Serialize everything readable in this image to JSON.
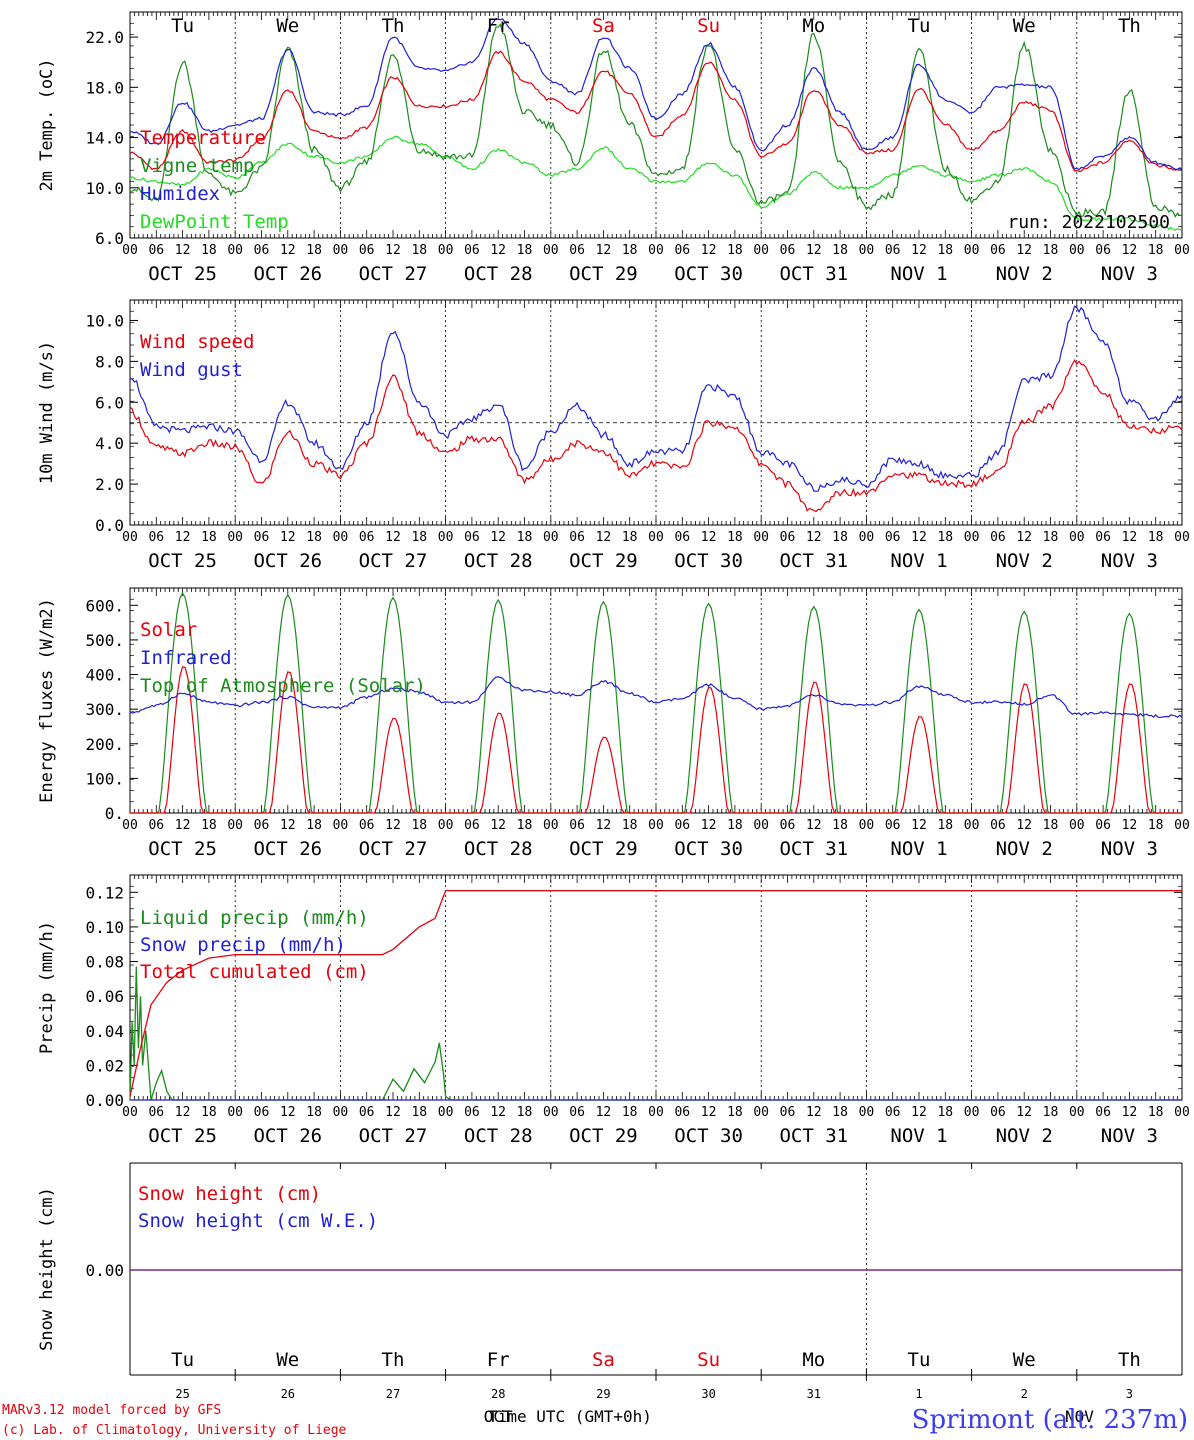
{
  "days_top": [
    {
      "label": "Tu",
      "color": "#000000"
    },
    {
      "label": "We",
      "color": "#000000"
    },
    {
      "label": "Th",
      "color": "#000000"
    },
    {
      "label": "Fr",
      "color": "#000000"
    },
    {
      "label": "Sa",
      "color": "#e8000b"
    },
    {
      "label": "Su",
      "color": "#e8000b"
    },
    {
      "label": "Mo",
      "color": "#000000"
    },
    {
      "label": "Tu",
      "color": "#000000"
    },
    {
      "label": "We",
      "color": "#000000"
    },
    {
      "label": "Th",
      "color": "#000000"
    }
  ],
  "date_labels": [
    "OCT 25",
    "OCT 26",
    "OCT 27",
    "OCT 28",
    "OCT 29",
    "OCT 30",
    "OCT 31",
    "NOV  1",
    "NOV  2",
    "NOV  3"
  ],
  "hour_ticks": [
    "00",
    "06",
    "12",
    "18"
  ],
  "hour_end": "00",
  "colors": {
    "red": "#e8000b",
    "green": "#1a8c1a",
    "blue": "#1f1fd6",
    "lightgreen": "#22dd22",
    "purple": "#7a2a8a"
  },
  "chart_data": [
    {
      "type": "line",
      "ylabel": "2m Temp. (oC)",
      "ylim": [
        6,
        24
      ],
      "yticks": [
        "6.0",
        "10.0",
        "14.0",
        "18.0",
        "22.0"
      ],
      "note": "run: 2022102500",
      "x_days": [
        0,
        0.25,
        0.5,
        0.75,
        1,
        1.25,
        1.5,
        1.75,
        2,
        2.25,
        2.5,
        2.75,
        3,
        3.25,
        3.5,
        3.75,
        4,
        4.25,
        4.5,
        4.75,
        5,
        5.25,
        5.5,
        5.75,
        6,
        6.25,
        6.5,
        6.75,
        7,
        7.25,
        7.5,
        7.75,
        8,
        8.25,
        8.5,
        8.75,
        9,
        9.25,
        9.5,
        9.75,
        10
      ],
      "series": [
        {
          "name": "Temperature",
          "color": "red",
          "values": [
            12.8,
            11.5,
            14.5,
            12.0,
            12.2,
            13.8,
            17.8,
            14.5,
            13.9,
            14.8,
            18.8,
            16.5,
            16.5,
            17.0,
            20.8,
            18.5,
            17.0,
            16.0,
            19.3,
            17.5,
            14.0,
            15.8,
            20.0,
            17.0,
            12.5,
            13.5,
            17.8,
            15.0,
            12.8,
            13.0,
            17.9,
            15.0,
            13.0,
            14.5,
            16.8,
            16.2,
            11.3,
            12.0,
            13.8,
            11.8,
            11.4
          ]
        },
        {
          "name": "Vigne temp",
          "color": "green",
          "values": [
            10.0,
            9.0,
            20.0,
            11.0,
            9.5,
            11.5,
            21.0,
            13.0,
            10.0,
            12.0,
            20.5,
            13.0,
            12.5,
            12.5,
            23.0,
            16.0,
            15.0,
            12.0,
            21.0,
            15.0,
            11.0,
            11.5,
            21.5,
            13.0,
            8.8,
            9.5,
            22.2,
            12.0,
            8.5,
            9.5,
            21.0,
            11.5,
            9.0,
            10.5,
            21.3,
            13.0,
            8.0,
            8.0,
            17.8,
            8.5,
            7.8
          ]
        },
        {
          "name": "Humidex",
          "color": "blue",
          "values": [
            14.5,
            13.5,
            16.8,
            14.5,
            15.0,
            15.5,
            21.0,
            16.0,
            15.8,
            16.5,
            22.0,
            19.5,
            19.3,
            20.0,
            23.5,
            21.5,
            18.5,
            17.5,
            22.0,
            19.5,
            15.5,
            17.5,
            21.5,
            18.0,
            13.0,
            15.0,
            19.5,
            16.0,
            13.0,
            14.0,
            19.8,
            17.0,
            16.0,
            18.0,
            18.2,
            18.0,
            11.5,
            12.5,
            14.0,
            12.0,
            11.5
          ]
        },
        {
          "name": "DewPoint Temp",
          "color": "lightgreen",
          "values": [
            10.8,
            10.5,
            10.2,
            11.5,
            10.8,
            12.0,
            13.5,
            12.5,
            12.0,
            12.5,
            14.0,
            13.5,
            12.5,
            11.5,
            13.0,
            12.0,
            11.0,
            11.5,
            13.2,
            11.5,
            10.5,
            10.5,
            12.0,
            11.0,
            8.5,
            9.5,
            11.2,
            10.0,
            10.0,
            11.0,
            11.8,
            11.0,
            10.5,
            11.0,
            11.5,
            10.5,
            7.5,
            7.5,
            7.5,
            7.0,
            6.6
          ]
        }
      ]
    },
    {
      "type": "line",
      "ylabel": "10m Wind (m/s)",
      "ylim": [
        0,
        11
      ],
      "yticks": [
        "0.0",
        "2.0",
        "4.0",
        "6.0",
        "8.0",
        "10.0"
      ],
      "reference_line": 5,
      "x_days": [
        0,
        0.25,
        0.5,
        0.75,
        1,
        1.25,
        1.5,
        1.75,
        2,
        2.25,
        2.5,
        2.75,
        3,
        3.25,
        3.5,
        3.75,
        4,
        4.25,
        4.5,
        4.75,
        5,
        5.25,
        5.5,
        5.75,
        6,
        6.25,
        6.5,
        6.75,
        7,
        7.25,
        7.5,
        7.75,
        8,
        8.25,
        8.5,
        8.75,
        9,
        9.25,
        9.5,
        9.75,
        10
      ],
      "series": [
        {
          "name": "Wind speed",
          "color": "red",
          "values": [
            5.6,
            3.8,
            3.5,
            4.0,
            3.8,
            2.0,
            4.5,
            3.0,
            2.4,
            4.0,
            7.2,
            4.5,
            3.5,
            4.2,
            4.2,
            2.2,
            3.2,
            4.0,
            3.6,
            2.4,
            3.0,
            2.8,
            5.0,
            4.8,
            3.0,
            2.0,
            0.6,
            1.6,
            1.6,
            2.5,
            2.4,
            2.0,
            2.0,
            2.6,
            5.0,
            5.8,
            8.0,
            6.5,
            4.8,
            4.6,
            4.8
          ]
        },
        {
          "name": "Wind gust",
          "color": "blue",
          "values": [
            7.3,
            4.8,
            4.6,
            4.8,
            4.6,
            3.2,
            6.0,
            4.0,
            2.8,
            5.0,
            9.5,
            6.0,
            4.4,
            5.2,
            5.9,
            2.8,
            4.6,
            5.8,
            4.4,
            3.0,
            3.6,
            3.6,
            6.8,
            6.3,
            3.6,
            3.0,
            1.8,
            2.2,
            2.0,
            3.2,
            3.0,
            2.4,
            2.4,
            3.5,
            7.0,
            7.3,
            10.6,
            9.0,
            6.0,
            5.2,
            6.3
          ]
        }
      ]
    },
    {
      "type": "line",
      "ylabel": "Energy fluxes (W/m2)",
      "ylim": [
        0,
        650
      ],
      "yticks": [
        "0.",
        "100.",
        "200.",
        "300.",
        "400.",
        "500.",
        "600."
      ],
      "x_days": [
        0,
        0.25,
        0.5,
        0.75,
        1,
        1.25,
        1.5,
        1.75,
        2,
        2.25,
        2.5,
        2.75,
        3,
        3.25,
        3.5,
        3.75,
        4,
        4.25,
        4.5,
        4.75,
        5,
        5.25,
        5.5,
        5.75,
        6,
        6.25,
        6.5,
        6.75,
        7,
        7.25,
        7.5,
        7.75,
        8,
        8.25,
        8.5,
        8.75,
        9,
        9.25,
        9.5,
        9.75,
        10
      ],
      "daily_peaks": {
        "Top of Atmosphere (Solar)": [
          635,
          630,
          622,
          615,
          610,
          605,
          596,
          588,
          582,
          576
        ],
        "Solar": [
          425,
          410,
          275,
          290,
          220,
          365,
          380,
          280,
          375,
          375
        ]
      },
      "series": [
        {
          "name": "Solar",
          "color": "red"
        },
        {
          "name": "Infrared",
          "color": "blue",
          "values": [
            290,
            310,
            345,
            320,
            310,
            320,
            335,
            305,
            305,
            335,
            360,
            350,
            320,
            320,
            390,
            355,
            350,
            340,
            380,
            345,
            320,
            330,
            370,
            330,
            300,
            310,
            340,
            315,
            310,
            320,
            365,
            340,
            320,
            320,
            315,
            340,
            285,
            290,
            285,
            280,
            280
          ]
        },
        {
          "name": "Top of Atmosphere (Solar)",
          "color": "green"
        }
      ]
    },
    {
      "type": "line",
      "ylabel": "Precip (mm/h)",
      "ylim": [
        0,
        0.13
      ],
      "yticks": [
        "0.00",
        "0.02",
        "0.04",
        "0.06",
        "0.08",
        "0.10",
        "0.12"
      ],
      "series": [
        {
          "name": "Liquid precip (mm/h)",
          "color": "green",
          "x_days": [
            0,
            0.02,
            0.04,
            0.06,
            0.08,
            0.1,
            0.12,
            0.15,
            0.2,
            0.25,
            0.3,
            0.35,
            0.4,
            0.45,
            0.5,
            2.4,
            2.5,
            2.6,
            2.7,
            2.8,
            2.9,
            2.94,
            2.98,
            3.0,
            3.05,
            10
          ],
          "values": [
            0,
            0.045,
            0.02,
            0.077,
            0.03,
            0.06,
            0.02,
            0.04,
            0.0,
            0.01,
            0.017,
            0.005,
            0.0,
            0.0,
            0,
            0,
            0.012,
            0.005,
            0.018,
            0.01,
            0.022,
            0.033,
            0.015,
            0.002,
            0,
            0
          ]
        },
        {
          "name": "Snow precip (mm/h)",
          "color": "blue",
          "x_days": [
            0,
            10
          ],
          "values": [
            0,
            0
          ]
        },
        {
          "name": "Total cumulated (cm)",
          "color": "red",
          "x_days": [
            0,
            0.1,
            0.2,
            0.35,
            0.5,
            0.75,
            1,
            1.5,
            2,
            2.4,
            2.5,
            2.75,
            2.9,
            3.0,
            3.5,
            10
          ],
          "values": [
            0.002,
            0.03,
            0.055,
            0.068,
            0.075,
            0.082,
            0.084,
            0.084,
            0.084,
            0.084,
            0.087,
            0.1,
            0.105,
            0.121,
            0.121,
            0.121
          ]
        }
      ]
    },
    {
      "type": "line",
      "ylabel": "Snow height (cm)",
      "yticks": [
        "0.00"
      ],
      "series": [
        {
          "name": "Snow height (cm)",
          "color": "red",
          "x_days": [
            0,
            10
          ],
          "values": [
            0,
            0
          ]
        },
        {
          "name": "Snow height (cm W.E.)",
          "color": "blue",
          "x_days": [
            0,
            10
          ],
          "values": [
            0,
            0
          ]
        }
      ]
    }
  ],
  "bottom": {
    "day_numbers": [
      "25",
      "26",
      "27",
      "28",
      "29",
      "30",
      "31",
      "1",
      "2",
      "3"
    ],
    "month_left": "OCT",
    "month_right": "NOV",
    "xlabel": "Time UTC (GMT+0h)",
    "credit1": "MARv3.12 model forced by GFS",
    "credit2": "(c) Lab. of Climatology, University of Liege",
    "location": "Sprimont (alt. 237m)"
  }
}
